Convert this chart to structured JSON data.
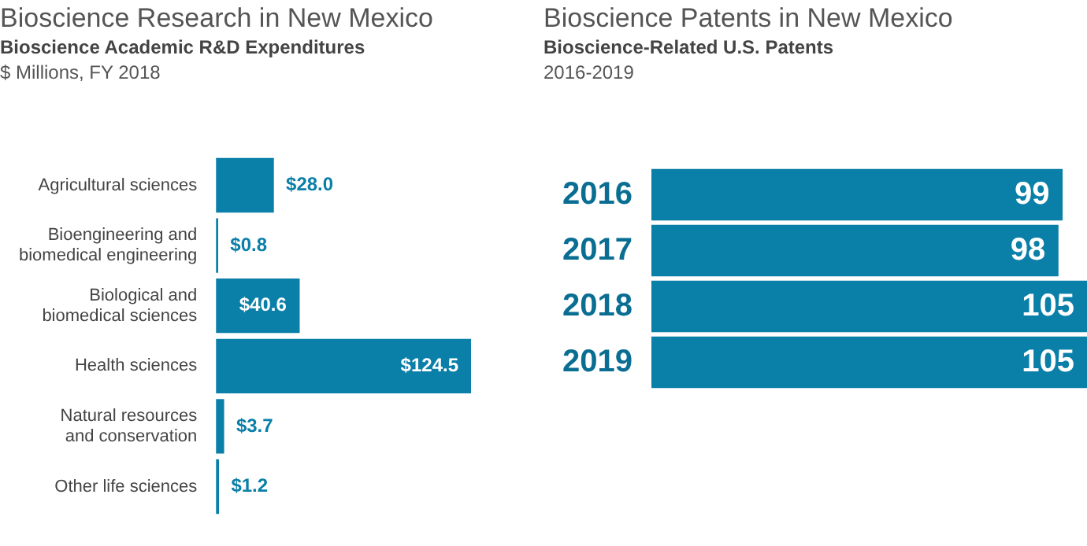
{
  "chart_data": [
    {
      "type": "bar",
      "orientation": "horizontal",
      "title": "Bioscience Research in New Mexico",
      "subtitle": "Bioscience Academic R&D Expenditures",
      "annotations": [
        "$ Millions, FY 2018"
      ],
      "categories": [
        "Agricultural sciences",
        "Bioengineering and biomedical engineering",
        "Biological and biomedical sciences",
        "Health sciences",
        "Natural resources and conservation",
        "Other life sciences"
      ],
      "values": [
        28.0,
        0.8,
        40.6,
        124.5,
        3.7,
        1.2
      ],
      "value_labels": [
        "$28.0",
        "$0.8",
        "$40.6",
        "$124.5",
        "$3.7",
        "$1.2"
      ],
      "color": "#0a7fa8",
      "grid": false,
      "legend": false,
      "tick_labels": "y"
    },
    {
      "type": "bar",
      "orientation": "horizontal",
      "title": "Bioscience Patents in New Mexico",
      "subtitle": "Bioscience-Related U.S. Patents",
      "annotations": [
        "2016-2019"
      ],
      "categories": [
        "2016",
        "2017",
        "2018",
        "2019"
      ],
      "values": [
        99,
        98,
        105,
        105
      ],
      "data_labels": true,
      "color": "#0a7fa8",
      "grid": false,
      "legend": false,
      "tick_labels": "y"
    }
  ]
}
